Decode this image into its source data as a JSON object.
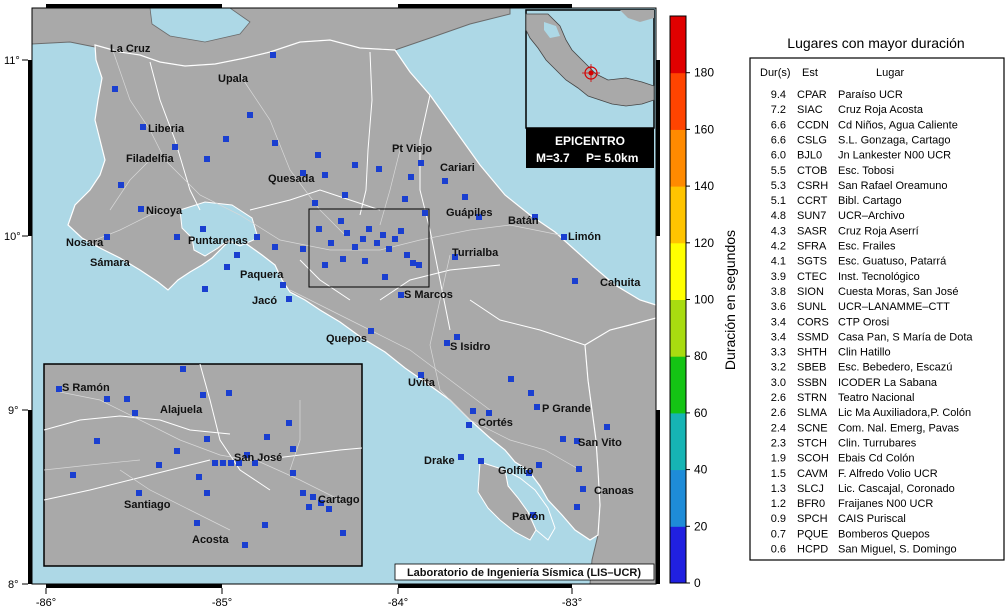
{
  "map": {
    "x_ticks": [
      "-86°",
      "-85°",
      "-84°",
      "-83°"
    ],
    "y_ticks": [
      "11°",
      "10°",
      "9°",
      "8°"
    ],
    "cities": [
      {
        "name": "La Cruz"
      },
      {
        "name": "Upala"
      },
      {
        "name": "Liberia"
      },
      {
        "name": "Filadelfia"
      },
      {
        "name": "Quesada"
      },
      {
        "name": "Pt Viejo"
      },
      {
        "name": "Cariari"
      },
      {
        "name": "Nicoya"
      },
      {
        "name": "Guápiles"
      },
      {
        "name": "Batán"
      },
      {
        "name": "Limón"
      },
      {
        "name": "Nosara"
      },
      {
        "name": "Puntarenas"
      },
      {
        "name": "Turrialba"
      },
      {
        "name": "Sámara"
      },
      {
        "name": "Paquera"
      },
      {
        "name": "Cahuita"
      },
      {
        "name": "Jacó"
      },
      {
        "name": "S Marcos"
      },
      {
        "name": "Quepos"
      },
      {
        "name": "S Isidro"
      },
      {
        "name": "Uvita"
      },
      {
        "name": "P Grande"
      },
      {
        "name": "Cortés"
      },
      {
        "name": "San Vito"
      },
      {
        "name": "Drake"
      },
      {
        "name": "Golfito"
      },
      {
        "name": "Canoas"
      },
      {
        "name": "Pavón"
      }
    ],
    "inset_cities": [
      "S Ramón",
      "Alajuela",
      "San José",
      "Santiago",
      "Cartago",
      "Acosta"
    ],
    "epicenter": {
      "title": "EPICENTRO",
      "magnitude": "M=3.7",
      "depth": "P=  5.0km"
    },
    "credit": "Laboratorio de Ingeniería Sísmica (LIS–UCR)",
    "colors": {
      "sea": "#add8e6",
      "land": "#a9a9a9",
      "station": "#1a3fd0"
    }
  },
  "colorbar": {
    "label": "Duración en segundos",
    "ticks": [
      "0",
      "20",
      "40",
      "60",
      "80",
      "100",
      "120",
      "140",
      "160",
      "180"
    ],
    "colors": [
      "#2020e0",
      "#1e8cd8",
      "#16b4b4",
      "#14c414",
      "#a8dc10",
      "#ffff00",
      "#ffc400",
      "#ff8a00",
      "#ff4400",
      "#e00000"
    ]
  },
  "station_list": {
    "title": "Lugares con mayor duración",
    "col_dur": "Dur(s)",
    "col_est": "Est",
    "col_lugar": "Lugar",
    "rows": [
      {
        "dur": "9.4",
        "est": "CPAR",
        "lugar": "Paraíso UCR"
      },
      {
        "dur": "7.2",
        "est": "SIAC",
        "lugar": "Cruz Roja Acosta"
      },
      {
        "dur": "6.6",
        "est": "CCDN",
        "lugar": "Cd Niños, Agua Caliente"
      },
      {
        "dur": "6.6",
        "est": "CSLG",
        "lugar": "S.L. Gonzaga, Cartago"
      },
      {
        "dur": "6.0",
        "est": "BJL0",
        "lugar": "Jn Lankester N00 UCR"
      },
      {
        "dur": "5.5",
        "est": "CTOB",
        "lugar": "Esc. Tobosi"
      },
      {
        "dur": "5.3",
        "est": "CSRH",
        "lugar": "San Rafael Oreamuno"
      },
      {
        "dur": "5.1",
        "est": "CCRT",
        "lugar": "Bibl. Cartago"
      },
      {
        "dur": "4.8",
        "est": "SUN7",
        "lugar": "UCR–Archivo"
      },
      {
        "dur": "4.3",
        "est": "SASR",
        "lugar": "Cruz Roja Aserrí"
      },
      {
        "dur": "4.2",
        "est": "SFRA",
        "lugar": "Esc. Frailes"
      },
      {
        "dur": "4.1",
        "est": "SGTS",
        "lugar": "Esc. Guatuso, Patarrá"
      },
      {
        "dur": "3.9",
        "est": "CTEC",
        "lugar": "Inst. Tecnológico"
      },
      {
        "dur": "3.8",
        "est": "SION",
        "lugar": "Cuesta Moras, San José"
      },
      {
        "dur": "3.6",
        "est": "SUNL",
        "lugar": "UCR–LANAMME–CTT"
      },
      {
        "dur": "3.4",
        "est": "CORS",
        "lugar": "CTP Orosi"
      },
      {
        "dur": "3.4",
        "est": "SSMD",
        "lugar": "Casa Pan, S María de Dota"
      },
      {
        "dur": "3.3",
        "est": "SHTH",
        "lugar": "Clin Hatillo"
      },
      {
        "dur": "3.2",
        "est": "SBEB",
        "lugar": "Esc. Bebedero, Escazú"
      },
      {
        "dur": "3.0",
        "est": "SSBN",
        "lugar": "ICODER La Sabana"
      },
      {
        "dur": "2.6",
        "est": "STRN",
        "lugar": "Teatro Nacional"
      },
      {
        "dur": "2.6",
        "est": "SLMA",
        "lugar": "Lic Ma Auxiliadora,P. Colón"
      },
      {
        "dur": "2.4",
        "est": "SCNE",
        "lugar": "Com. Nal. Emerg, Pavas"
      },
      {
        "dur": "2.3",
        "est": "STCH",
        "lugar": "Clin. Turrubares"
      },
      {
        "dur": "1.9",
        "est": "SCOH",
        "lugar": "Ebais Cd Colón"
      },
      {
        "dur": "1.5",
        "est": "CAVM",
        "lugar": "F. Alfredo Volio UCR"
      },
      {
        "dur": "1.3",
        "est": "SLCJ",
        "lugar": "Lic. Cascajal, Coronado"
      },
      {
        "dur": "1.2",
        "est": "BFR0",
        "lugar": "Fraijanes N00 UCR"
      },
      {
        "dur": "0.9",
        "est": "SPCH",
        "lugar": "CAIS Puriscal"
      },
      {
        "dur": "0.7",
        "est": "PQUE",
        "lugar": "Bomberos Quepos"
      },
      {
        "dur": "0.6",
        "est": "HCPD",
        "lugar": "San Miguel, S. Domingo"
      }
    ]
  }
}
